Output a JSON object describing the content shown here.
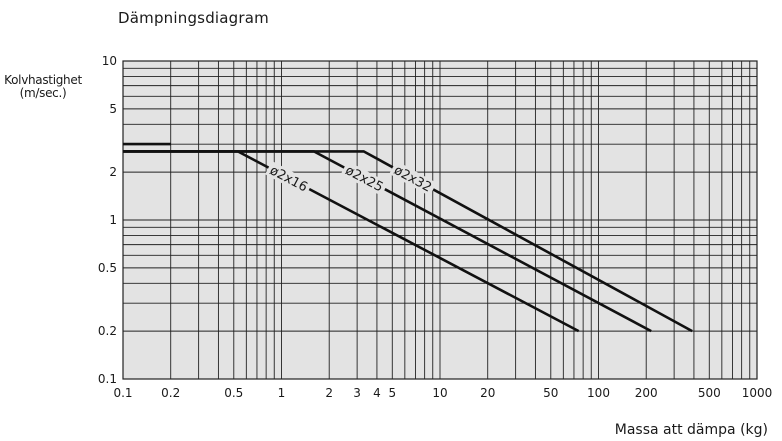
{
  "title": "Dämpningsdiagram",
  "ylabel_line1": "Kolvhastighet",
  "ylabel_line2": "(m/sec.)",
  "xlabel": "Massa att dämpa (kg)",
  "chart_data": {
    "type": "line",
    "title": "Dämpningsdiagram",
    "xlabel": "Massa att dämpa (kg)",
    "ylabel": "Kolvhastighet (m/sec.)",
    "xscale": "log",
    "yscale": "log",
    "xlim": [
      0.1,
      1000
    ],
    "ylim": [
      0.1,
      10
    ],
    "grid": true,
    "x_ticks": [
      "0.1",
      "0.2",
      "0.5",
      "1",
      "2",
      "3",
      "4",
      "5",
      "10",
      "20",
      "50",
      "100",
      "200",
      "500",
      "1000"
    ],
    "y_ticks": [
      "0.1",
      "0.2",
      "0.5",
      "1",
      "2",
      "5",
      "10"
    ],
    "series": [
      {
        "name": "ø2x16",
        "x": [
          0.1,
          0.53,
          75
        ],
        "y": [
          2.7,
          2.7,
          0.2
        ]
      },
      {
        "name": "ø2x25",
        "x": [
          0.1,
          1.6,
          215
        ],
        "y": [
          2.7,
          2.7,
          0.2
        ]
      },
      {
        "name": "ø2x32",
        "x": [
          0.1,
          3.3,
          390
        ],
        "y": [
          2.7,
          2.7,
          0.2
        ]
      },
      {
        "name": "",
        "x": [
          0.1,
          0.2
        ],
        "y": [
          3.0,
          3.0
        ]
      }
    ],
    "line_color": "#111111",
    "grid_color": "#222222",
    "plot_bg": "#e3e3e3"
  }
}
